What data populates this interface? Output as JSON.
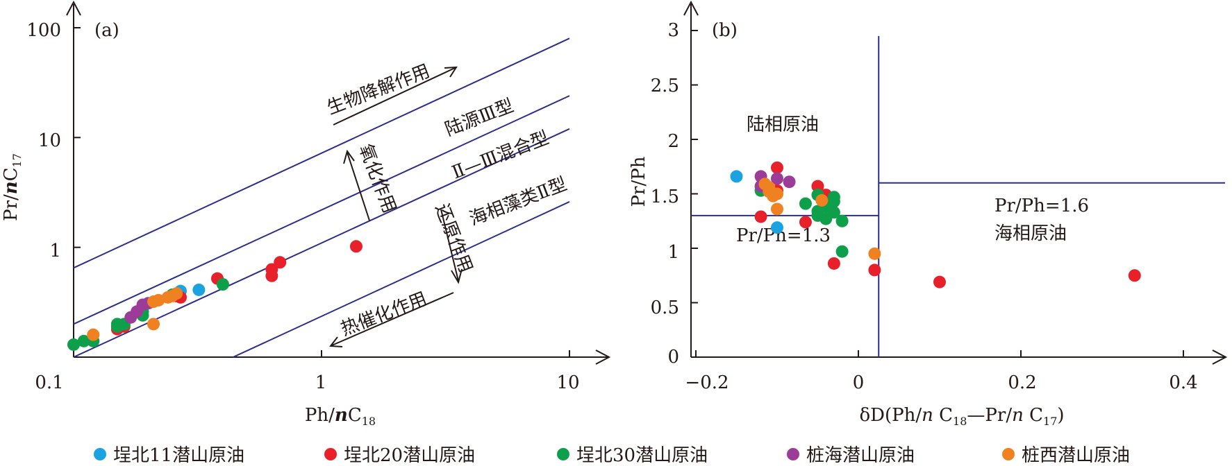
{
  "colors": {
    "axis": "#231815",
    "line": "#2c2c8c",
    "qb11": "#1aa3e0",
    "qb20": "#e8202a",
    "qb30": "#0e9f4a",
    "zhuanghai": "#9a3c98",
    "zhuangxi": "#f08120"
  },
  "legend": [
    {
      "label": "埕北11潜山原油",
      "color": "#1aa3e0"
    },
    {
      "label": "埕北20潜山原油",
      "color": "#e8202a"
    },
    {
      "label": "埕北30潜山原油",
      "color": "#0e9f4a"
    },
    {
      "label": "桩海潜山原油",
      "color": "#9a3c98"
    },
    {
      "label": "桩西潜山原油",
      "color": "#f08120"
    }
  ],
  "chart_data": [
    {
      "panel": "(a)",
      "type": "scatter",
      "x_scale": "log",
      "y_scale": "log",
      "xlim": [
        0.1,
        10
      ],
      "ylim": [
        0.1,
        100
      ],
      "x_ticks": [
        "0.1",
        "1",
        "10"
      ],
      "y_ticks": [
        "1",
        "10",
        "100"
      ],
      "xlabel": "Ph/nC18",
      "ylabel": "Pr/nC17",
      "reference_lines": [
        {
          "from": [
            0.1,
            0.65
          ],
          "to": [
            10,
            80
          ]
        },
        {
          "from": [
            0.1,
            0.2
          ],
          "to": [
            10,
            24
          ]
        },
        {
          "from": [
            0.1,
            0.1
          ],
          "to": [
            10,
            12
          ]
        },
        {
          "from": [
            0.44,
            0.1
          ],
          "to": [
            10,
            2.6
          ]
        }
      ],
      "annotations": [
        "生物降解作用",
        "陆源Ⅲ型",
        "Ⅱ—Ⅲ混合型",
        "氧化作用",
        "还原作用",
        "海相藻类Ⅱ型",
        "热催化作用"
      ],
      "series": [
        {
          "name": "埕北11潜山原油",
          "points": [
            [
              0.27,
              0.4
            ],
            [
              0.32,
              0.41
            ]
          ]
        },
        {
          "name": "埕北20潜山原油",
          "points": [
            [
              0.15,
              0.18
            ],
            [
              0.16,
              0.19
            ],
            [
              0.26,
              0.36
            ],
            [
              0.27,
              0.35
            ],
            [
              0.38,
              0.52
            ],
            [
              0.63,
              0.55
            ],
            [
              0.63,
              0.63
            ],
            [
              0.68,
              0.73
            ],
            [
              1.38,
              1.02
            ]
          ]
        },
        {
          "name": "埕北30潜山原油",
          "points": [
            [
              0.1,
              0.13
            ],
            [
              0.11,
              0.14
            ],
            [
              0.12,
              0.14
            ],
            [
              0.15,
              0.19
            ],
            [
              0.15,
              0.2
            ],
            [
              0.16,
              0.2
            ],
            [
              0.19,
              0.24
            ],
            [
              0.19,
              0.26
            ],
            [
              0.25,
              0.37
            ],
            [
              0.4,
              0.46
            ]
          ]
        },
        {
          "name": "桩海潜山原油",
          "points": [
            [
              0.17,
              0.23
            ],
            [
              0.18,
              0.26
            ],
            [
              0.19,
              0.3
            ],
            [
              0.2,
              0.31
            ]
          ]
        },
        {
          "name": "桩西潜山原油",
          "points": [
            [
              0.12,
              0.16
            ],
            [
              0.21,
              0.2
            ],
            [
              0.21,
              0.32
            ],
            [
              0.22,
              0.33
            ],
            [
              0.24,
              0.35
            ],
            [
              0.25,
              0.36
            ],
            [
              0.26,
              0.38
            ]
          ]
        }
      ]
    },
    {
      "panel": "(b)",
      "type": "scatter",
      "xlim": [
        -0.22,
        0.45
      ],
      "ylim": [
        0,
        3
      ],
      "x_ticks": [
        "−0.2",
        "0",
        "0.2",
        "0.4"
      ],
      "y_ticks": [
        "0",
        "0.5",
        "1",
        "1.5",
        "2",
        "2.5",
        "3"
      ],
      "xlabel": "δD(Ph/n C18—Pr/n C17)",
      "ylabel": "Pr/Ph",
      "reference_lines": [
        {
          "from": [
            0.025,
            0
          ],
          "to": [
            0.025,
            2.95
          ]
        },
        {
          "from": [
            -0.22,
            1.3
          ],
          "to": [
            0.025,
            1.3
          ],
          "label": "Pr/Ph=1.3"
        },
        {
          "from": [
            0.025,
            1.6
          ],
          "to": [
            0.45,
            1.6
          ],
          "label": "Pr/Ph=1.6"
        }
      ],
      "annotations": [
        "陆相原油",
        "海相原油"
      ],
      "series": [
        {
          "name": "埕北11潜山原油",
          "points": [
            [
              -0.15,
              1.66
            ],
            [
              -0.1,
              1.19
            ]
          ]
        },
        {
          "name": "埕北20潜山原油",
          "points": [
            [
              -0.1,
              1.74
            ],
            [
              -0.1,
              1.53
            ],
            [
              -0.12,
              1.29
            ],
            [
              -0.065,
              1.24
            ],
            [
              -0.05,
              1.57
            ],
            [
              -0.04,
              1.49
            ],
            [
              -0.03,
              0.86
            ],
            [
              0.02,
              0.8
            ],
            [
              0.1,
              0.69
            ],
            [
              0.34,
              0.75
            ]
          ]
        },
        {
          "name": "埕北30潜山原油",
          "points": [
            [
              -0.12,
              1.53
            ],
            [
              -0.065,
              1.41
            ],
            [
              -0.05,
              1.49
            ],
            [
              -0.05,
              1.34
            ],
            [
              -0.05,
              1.3
            ],
            [
              -0.04,
              1.38
            ],
            [
              -0.04,
              1.27
            ],
            [
              -0.03,
              1.47
            ],
            [
              -0.03,
              1.43
            ],
            [
              -0.03,
              1.33
            ],
            [
              -0.02,
              1.25
            ],
            [
              -0.02,
              0.97
            ]
          ]
        },
        {
          "name": "桩海潜山原油",
          "points": [
            [
              -0.12,
              1.66
            ],
            [
              -0.12,
              1.57
            ],
            [
              -0.1,
              1.64
            ],
            [
              -0.085,
              1.61
            ]
          ]
        },
        {
          "name": "桩西潜山原油",
          "points": [
            [
              -0.115,
              1.59
            ],
            [
              -0.11,
              1.56
            ],
            [
              -0.11,
              1.52
            ],
            [
              -0.105,
              1.48
            ],
            [
              -0.1,
              1.5
            ],
            [
              -0.1,
              1.36
            ],
            [
              -0.045,
              1.44
            ],
            [
              0.02,
              0.95
            ]
          ]
        }
      ]
    }
  ]
}
